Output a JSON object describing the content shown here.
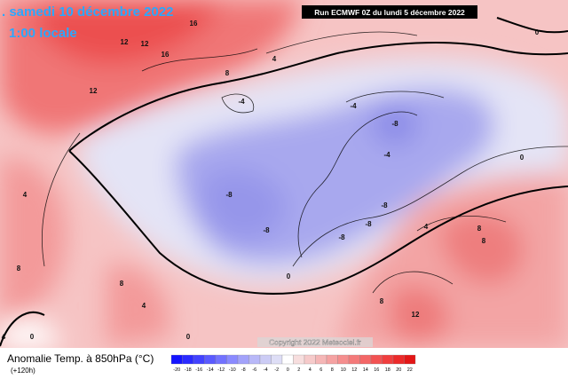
{
  "header": {
    "date": ". samedi 10 décembre 2022",
    "time": "1:00 locale",
    "run": "Run ECMWF 0Z du lundi 5 décembre 2022"
  },
  "map": {
    "contour_labels": [
      "16",
      "12",
      "12",
      "16",
      "8",
      "4",
      "12",
      "4",
      "8",
      "8",
      "4",
      "0",
      "-4",
      "-4",
      "-8",
      "-4",
      "-8",
      "-8",
      "-8",
      "-8",
      "-8",
      "4",
      "8",
      "8",
      "8",
      "12",
      "0",
      "0",
      "0",
      "0",
      "4"
    ]
  },
  "copyright": "Copyright 2022 Meteociel.fr",
  "legend": {
    "title": "Anomalie Temp. à 850hPa (°C)",
    "lead": "(+120h)",
    "ticks": [
      -20,
      -18,
      -16,
      -14,
      -12,
      -10,
      -8,
      -6,
      -4,
      -2,
      0,
      2,
      4,
      6,
      8,
      10,
      12,
      14,
      16,
      18,
      20,
      22
    ],
    "colors": [
      "#1414ff",
      "#2a2aff",
      "#4242ff",
      "#5a5aff",
      "#7272ff",
      "#8a8aff",
      "#a2a2fa",
      "#b8b8f8",
      "#ccccf5",
      "#dedef6",
      "#ffffff",
      "#f7dede",
      "#f6caca",
      "#f5b6b6",
      "#f5a2a2",
      "#f58e8e",
      "#f47a7a",
      "#f36666",
      "#f25252",
      "#f03e3e",
      "#ec2a2a",
      "#e31616"
    ]
  }
}
